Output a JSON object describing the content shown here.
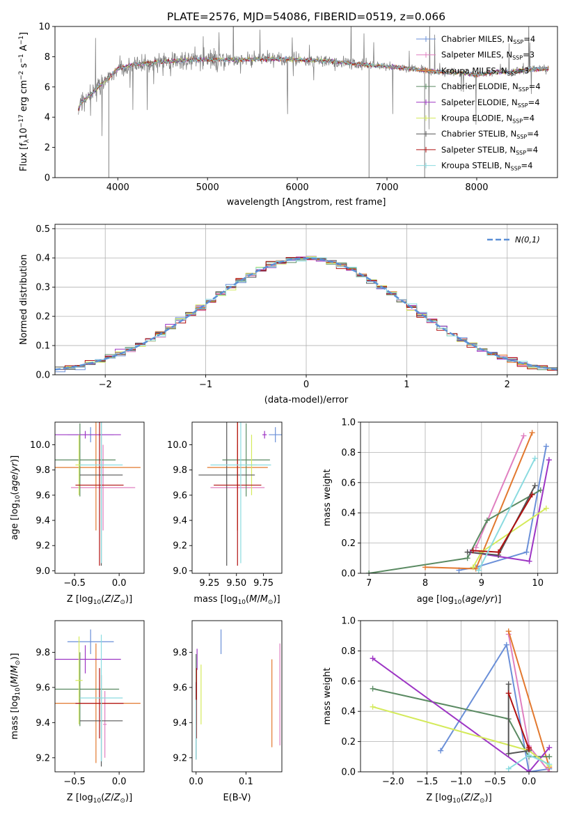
{
  "figure_title": "PLATE=2576, MJD=54086, FIBERID=0519, z=0.066",
  "models": [
    {
      "name": "Chabrier MILES",
      "nssp": "4",
      "color": "#6a8fd8"
    },
    {
      "name": "Salpeter MILES",
      "nssp": "3",
      "color": "#e07fc0"
    },
    {
      "name": "Kroupa MILES",
      "nssp": "3",
      "color": "#e2782e"
    },
    {
      "name": "Chabrier ELODIE",
      "nssp": "4",
      "color": "#5a8a62"
    },
    {
      "name": "Salpeter ELODIE",
      "nssp": "4",
      "color": "#9d35c4"
    },
    {
      "name": "Kroupa ELODIE",
      "nssp": "4",
      "color": "#d4ea5a"
    },
    {
      "name": "Chabrier STELIB",
      "nssp": "4",
      "color": "#555555"
    },
    {
      "name": "Salpeter STELIB",
      "nssp": "4",
      "color": "#b01010"
    },
    {
      "name": "Kroupa STELIB",
      "nssp": "4",
      "color": "#8adbe0"
    }
  ],
  "chart_data": [
    {
      "id": "spectrum",
      "type": "line",
      "title": "PLATE=2576, MJD=54086, FIBERID=0519, z=0.066",
      "xlabel": "wavelength [Angstrom, rest frame]",
      "ylabel": "Flux [f_λ 10^-17 erg cm^-2 s^-1 A^-1]",
      "xlim": [
        3300,
        8900
      ],
      "ylim": [
        0,
        10
      ],
      "xticks": [
        "4000",
        "5000",
        "6000",
        "7000",
        "8000"
      ],
      "yticks": [
        "0",
        "2",
        "4",
        "6",
        "8",
        "10"
      ],
      "data_color": "#808080",
      "continuum": {
        "x": [
          3560,
          3600,
          3700,
          3800,
          3900,
          4000,
          4200,
          4400,
          4600,
          4800,
          5000,
          5200,
          5400,
          5600,
          5800,
          6000,
          6200,
          6400,
          6600,
          6800,
          7000,
          7200,
          7400,
          7600,
          7800,
          8000,
          8200,
          8400,
          8600,
          8800
        ],
        "y": [
          4.6,
          5.0,
          5.5,
          6.1,
          6.6,
          7.2,
          7.5,
          7.6,
          7.7,
          7.8,
          7.8,
          7.8,
          7.8,
          7.85,
          7.85,
          7.8,
          7.75,
          7.7,
          7.55,
          7.45,
          7.35,
          7.25,
          7.1,
          7.0,
          6.95,
          6.8,
          7.0,
          7.0,
          7.15,
          7.2
        ]
      },
      "grid": false,
      "legend": "upper right"
    },
    {
      "id": "residuals",
      "type": "step",
      "xlabel": "(data-model)/error",
      "ylabel": "Normed distribution",
      "xlim": [
        -2.5,
        2.5
      ],
      "ylim": [
        0,
        0.515
      ],
      "xticks": [
        "−2",
        "−1",
        "0",
        "1",
        "2"
      ],
      "yticks": [
        "0.0",
        "0.1",
        "0.2",
        "0.3",
        "0.4",
        "0.5"
      ],
      "reference_label": "N(0,1)",
      "reference_color": "#5b8fd6",
      "grid": true,
      "legend": "upper right"
    },
    {
      "id": "age_vs_Z",
      "type": "errorbar",
      "xlabel": "Z [log10(Z/Z_sun)]",
      "ylabel": "age [log10(age/yr)]",
      "xlim": [
        -0.72,
        0.28
      ],
      "ylim": [
        8.98,
        10.18
      ],
      "xticks": [
        "−0.5",
        "0.0"
      ],
      "yticks": [
        "9.0",
        "9.2",
        "9.4",
        "9.6",
        "9.8",
        "10.0"
      ],
      "points": [
        {
          "x": -0.32,
          "xerr": 0.26,
          "y": 10.08,
          "yerr": 0.06
        },
        {
          "x": -0.18,
          "xerr": 0.36,
          "y": 9.66,
          "yerr": 0.34
        },
        {
          "x": -0.26,
          "xerr": 0.5,
          "y": 9.82,
          "yerr": 0.5
        },
        {
          "x": -0.44,
          "xerr": 0.4,
          "y": 9.88,
          "yerr": 0.29
        },
        {
          "x": -0.38,
          "xerr": 0.4,
          "y": 10.08,
          "yerr": 0.03
        },
        {
          "x": -0.45,
          "xerr": 0.04,
          "y": 9.84,
          "yerr": 0.24
        },
        {
          "x": -0.2,
          "xerr": 0.24,
          "y": 9.76,
          "yerr": 0.72
        },
        {
          "x": -0.22,
          "xerr": 0.27,
          "y": 9.68,
          "yerr": 0.64
        },
        {
          "x": -0.2,
          "xerr": 0.24,
          "y": 9.84,
          "yerr": 0.78
        }
      ]
    },
    {
      "id": "age_vs_mass",
      "type": "errorbar",
      "xlabel": "mass [log10(M/M_sun)]",
      "ylabel": "",
      "xlim": [
        9.09,
        9.92
      ],
      "ylim": [
        8.98,
        10.18
      ],
      "xticks": [
        "9.25",
        "9.50",
        "9.75"
      ],
      "yticks": [
        "9.0",
        "9.2",
        "9.4",
        "9.6",
        "9.8",
        "10.0"
      ],
      "points": [
        {
          "x": 9.86,
          "xerr": 0.06,
          "y": 10.08,
          "yerr": 0.06
        },
        {
          "x": 9.51,
          "xerr": 0.25,
          "y": 9.66,
          "yerr": 0.34
        },
        {
          "x": 9.51,
          "xerr": 0.28,
          "y": 9.82,
          "yerr": 0.5
        },
        {
          "x": 9.59,
          "xerr": 0.22,
          "y": 9.88,
          "yerr": 0.29
        },
        {
          "x": 9.76,
          "xerr": 0.02,
          "y": 10.08,
          "yerr": 0.03
        },
        {
          "x": 9.64,
          "xerr": 0.05,
          "y": 9.84,
          "yerr": 0.24
        },
        {
          "x": 9.41,
          "xerr": 0.26,
          "y": 9.76,
          "yerr": 0.72
        },
        {
          "x": 9.51,
          "xerr": 0.22,
          "y": 9.68,
          "yerr": 0.64
        },
        {
          "x": 9.54,
          "xerr": 0.28,
          "y": 9.84,
          "yerr": 0.78
        }
      ]
    },
    {
      "id": "weight_vs_age",
      "type": "line",
      "xlabel": "age [log10(age/yr)]",
      "ylabel": "mass weight",
      "xlim": [
        6.85,
        10.35
      ],
      "ylim": [
        0,
        1
      ],
      "xticks": [
        "7",
        "8",
        "9",
        "10"
      ],
      "yticks": [
        "0.0",
        "0.2",
        "0.4",
        "0.6",
        "0.8",
        "1.0"
      ],
      "grid": true,
      "series": [
        {
          "x": [
            8.6,
            8.9,
            9.8,
            10.15
          ],
          "y": [
            0.02,
            0.04,
            0.14,
            0.84
          ]
        },
        {
          "x": [
            8.9,
            9.75
          ],
          "y": [
            0.17,
            0.91
          ]
        },
        {
          "x": [
            8.0,
            8.9,
            9.9
          ],
          "y": [
            0.04,
            0.03,
            0.93
          ]
        },
        {
          "x": [
            7.0,
            8.75,
            9.1,
            10.05
          ],
          "y": [
            0.0,
            0.1,
            0.35,
            0.55
          ]
        },
        {
          "x": [
            8.8,
            9.85,
            10.2
          ],
          "y": [
            0.14,
            0.08,
            0.75
          ]
        },
        {
          "x": [
            8.85,
            9.0,
            10.15
          ],
          "y": [
            0.04,
            0.14,
            0.43
          ]
        },
        {
          "x": [
            8.75,
            9.3,
            9.95
          ],
          "y": [
            0.14,
            0.12,
            0.58
          ]
        },
        {
          "x": [
            8.85,
            9.3,
            9.9
          ],
          "y": [
            0.15,
            0.14,
            0.52
          ]
        },
        {
          "x": [
            8.95,
            9.95
          ],
          "y": [
            0.02,
            0.76
          ]
        }
      ]
    },
    {
      "id": "mass_vs_Z",
      "type": "errorbar",
      "xlabel": "Z [log10(Z/Z_sun)]",
      "ylabel": "mass [log10(M/M_sun)]",
      "xlim": [
        -0.72,
        0.28
      ],
      "ylim": [
        9.12,
        9.98
      ],
      "xticks": [
        "−0.5",
        "0.0"
      ],
      "yticks": [
        "9.2",
        "9.4",
        "9.6",
        "9.8"
      ],
      "points": [
        {
          "x": -0.32,
          "xerr": 0.26,
          "y": 9.86,
          "yerr": 0.07
        },
        {
          "x": -0.16,
          "xerr": 0.02,
          "y": 9.39,
          "yerr": 0.19
        },
        {
          "x": -0.26,
          "xerr": 0.5,
          "y": 9.51,
          "yerr": 0.34
        },
        {
          "x": -0.44,
          "xerr": 0.44,
          "y": 9.59,
          "yerr": 0.21
        },
        {
          "x": -0.38,
          "xerr": 0.4,
          "y": 9.76,
          "yerr": 0.08
        },
        {
          "x": -0.45,
          "xerr": 0.04,
          "y": 9.64,
          "yerr": 0.25
        },
        {
          "x": -0.2,
          "xerr": 0.24,
          "y": 9.41,
          "yerr": 0.26
        },
        {
          "x": -0.22,
          "xerr": 0.27,
          "y": 9.51,
          "yerr": 0.2
        },
        {
          "x": -0.2,
          "xerr": 0.24,
          "y": 9.54,
          "yerr": 0.36
        }
      ]
    },
    {
      "id": "mass_vs_EBV",
      "type": "errorbar",
      "xlabel": "E(B-V)",
      "ylabel": "",
      "xlim": [
        -0.008,
        0.172
      ],
      "ylim": [
        9.12,
        9.98
      ],
      "xticks": [
        "0.0",
        "0.1"
      ],
      "yticks": [
        "9.2",
        "9.4",
        "9.6",
        "9.8"
      ],
      "points": [
        {
          "x": 0.05,
          "y": 9.86,
          "yerr": 0.07
        },
        {
          "x": 0.168,
          "y": 9.56,
          "yerr": 0.29
        },
        {
          "x": 0.152,
          "y": 9.51,
          "yerr": 0.25
        },
        {
          "x": 0.0,
          "y": 9.59,
          "yerr": 0.2
        },
        {
          "x": 0.002,
          "y": 9.76,
          "yerr": 0.06
        },
        {
          "x": 0.01,
          "y": 9.56,
          "yerr": 0.17
        },
        {
          "x": 0.0,
          "y": 9.41,
          "yerr": 0.22
        },
        {
          "x": 0.001,
          "y": 9.51,
          "yerr": 0.2
        },
        {
          "x": 0.0,
          "y": 9.36,
          "yerr": 0.17
        }
      ]
    },
    {
      "id": "weight_vs_Z",
      "type": "line",
      "xlabel": "Z [log10(Z/Z_sun)]",
      "ylabel": "mass weight",
      "xlim": [
        -2.48,
        0.42
      ],
      "ylim": [
        0,
        1
      ],
      "xticks": [
        "−2.0",
        "−1.5",
        "−1.0",
        "−0.5",
        "0.0"
      ],
      "yticks": [
        "0.0",
        "0.2",
        "0.4",
        "0.6",
        "0.8",
        "1.0"
      ],
      "grid": true,
      "series": [
        {
          "x": [
            -1.3,
            -0.33,
            0.0,
            0.3
          ],
          "y": [
            0.14,
            0.84,
            0.0,
            0.02
          ]
        },
        {
          "x": [
            -0.3,
            0.0,
            0.3
          ],
          "y": [
            0.91,
            0.17,
            0.0
          ]
        },
        {
          "x": [
            -0.3,
            0.3
          ],
          "y": [
            0.93,
            0.03
          ]
        },
        {
          "x": [
            -2.3,
            -0.3,
            0.0,
            0.3
          ],
          "y": [
            0.55,
            0.35,
            0.1,
            0.1
          ]
        },
        {
          "x": [
            -2.3,
            0.0,
            0.3
          ],
          "y": [
            0.75,
            0.0,
            0.16
          ]
        },
        {
          "x": [
            -2.3,
            0.0,
            0.3
          ],
          "y": [
            0.43,
            0.14,
            0.04
          ]
        },
        {
          "x": [
            -0.3,
            -0.3,
            0.0
          ],
          "y": [
            0.58,
            0.12,
            0.14
          ]
        },
        {
          "x": [
            -0.3,
            0.0,
            0.0
          ],
          "y": [
            0.52,
            0.15,
            0.16
          ]
        },
        {
          "x": [
            -0.3,
            0.0,
            0.3
          ],
          "y": [
            0.02,
            0.11,
            0.05
          ]
        }
      ]
    }
  ]
}
